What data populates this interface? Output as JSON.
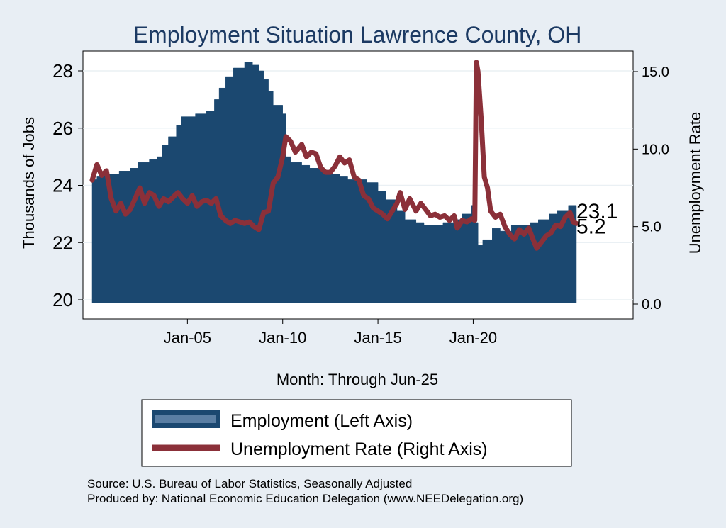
{
  "chart_data": {
    "type": "area+line",
    "title": "Employment Situation Lawrence  County, OH",
    "xlabel": "Month: Through Jun-25",
    "ylabel_left": "Thousands of Jobs",
    "ylabel_right": "Unemployment Rate",
    "x_range": [
      "2000-01",
      "2025-06"
    ],
    "x_ticks": [
      {
        "date": "2005-01",
        "label": "Jan-05"
      },
      {
        "date": "2010-01",
        "label": "Jan-10"
      },
      {
        "date": "2015-01",
        "label": "Jan-15"
      },
      {
        "date": "2020-01",
        "label": "Jan-20"
      }
    ],
    "ylim_left": [
      19.9,
      28.7
    ],
    "yticks_left": [
      20,
      22,
      24,
      26,
      28
    ],
    "ylim_right": [
      -0.3,
      16.3
    ],
    "yticks_right": [
      {
        "v": 0,
        "label": "0.0"
      },
      {
        "v": 5,
        "label": "5.0"
      },
      {
        "v": 10,
        "label": "10.0"
      },
      {
        "v": 15,
        "label": "15.0"
      }
    ],
    "grid": true,
    "legend_position": "bottom",
    "series": [
      {
        "name": "Employment (Left Axis)",
        "axis": "left",
        "color": "#1b4870",
        "points": [
          [
            "2000-01",
            24.2
          ],
          [
            "2000-04",
            24.3
          ],
          [
            "2000-07",
            24.4
          ],
          [
            "2001-01",
            24.4
          ],
          [
            "2001-06",
            24.5
          ],
          [
            "2002-01",
            24.6
          ],
          [
            "2002-06",
            24.8
          ],
          [
            "2003-01",
            24.9
          ],
          [
            "2003-06",
            25.0
          ],
          [
            "2003-09",
            25.4
          ],
          [
            "2004-01",
            25.7
          ],
          [
            "2004-06",
            26.1
          ],
          [
            "2004-09",
            26.4
          ],
          [
            "2005-01",
            26.4
          ],
          [
            "2005-06",
            26.5
          ],
          [
            "2006-01",
            26.6
          ],
          [
            "2006-06",
            27.0
          ],
          [
            "2006-09",
            27.4
          ],
          [
            "2007-01",
            27.8
          ],
          [
            "2007-06",
            28.1
          ],
          [
            "2008-01",
            28.3
          ],
          [
            "2008-06",
            28.2
          ],
          [
            "2008-10",
            28.0
          ],
          [
            "2009-01",
            27.7
          ],
          [
            "2009-04",
            27.3
          ],
          [
            "2009-07",
            26.8
          ],
          [
            "2010-01",
            26.5
          ],
          [
            "2010-03",
            25.0
          ],
          [
            "2010-06",
            24.8
          ],
          [
            "2011-01",
            24.7
          ],
          [
            "2011-06",
            24.6
          ],
          [
            "2012-01",
            24.5
          ],
          [
            "2012-06",
            24.4
          ],
          [
            "2013-01",
            24.3
          ],
          [
            "2013-06",
            24.2
          ],
          [
            "2014-01",
            24.2
          ],
          [
            "2014-06",
            24.1
          ],
          [
            "2015-01",
            23.8
          ],
          [
            "2015-06",
            23.5
          ],
          [
            "2016-01",
            23.1
          ],
          [
            "2016-06",
            22.8
          ],
          [
            "2017-01",
            22.7
          ],
          [
            "2017-06",
            22.6
          ],
          [
            "2018-01",
            22.6
          ],
          [
            "2018-06",
            22.7
          ],
          [
            "2019-01",
            22.8
          ],
          [
            "2019-06",
            23.0
          ],
          [
            "2019-12",
            23.3
          ],
          [
            "2020-02",
            22.7
          ],
          [
            "2020-04",
            21.9
          ],
          [
            "2020-07",
            22.1
          ],
          [
            "2021-01",
            22.5
          ],
          [
            "2021-06",
            22.4
          ],
          [
            "2022-01",
            22.6
          ],
          [
            "2022-06",
            22.6
          ],
          [
            "2023-01",
            22.7
          ],
          [
            "2023-06",
            22.8
          ],
          [
            "2024-01",
            23.0
          ],
          [
            "2024-06",
            23.1
          ],
          [
            "2025-01",
            23.3
          ],
          [
            "2025-06",
            23.1
          ]
        ]
      },
      {
        "name": "Unemployment Rate (Right Axis)",
        "axis": "right",
        "color": "#8b3039",
        "points": [
          [
            "2000-01",
            8.0
          ],
          [
            "2000-04",
            9.0
          ],
          [
            "2000-07",
            8.3
          ],
          [
            "2000-10",
            8.6
          ],
          [
            "2001-01",
            6.8
          ],
          [
            "2001-04",
            6.0
          ],
          [
            "2001-07",
            6.5
          ],
          [
            "2001-10",
            5.8
          ],
          [
            "2002-01",
            6.1
          ],
          [
            "2002-04",
            6.8
          ],
          [
            "2002-07",
            7.5
          ],
          [
            "2002-10",
            6.5
          ],
          [
            "2003-01",
            7.2
          ],
          [
            "2003-04",
            7.0
          ],
          [
            "2003-07",
            6.3
          ],
          [
            "2003-10",
            6.8
          ],
          [
            "2004-01",
            6.6
          ],
          [
            "2004-04",
            6.9
          ],
          [
            "2004-07",
            7.2
          ],
          [
            "2004-10",
            6.8
          ],
          [
            "2005-01",
            6.5
          ],
          [
            "2005-04",
            7.0
          ],
          [
            "2005-07",
            6.3
          ],
          [
            "2005-10",
            6.6
          ],
          [
            "2006-01",
            6.7
          ],
          [
            "2006-04",
            6.5
          ],
          [
            "2006-07",
            6.8
          ],
          [
            "2006-10",
            5.7
          ],
          [
            "2007-01",
            5.4
          ],
          [
            "2007-04",
            5.2
          ],
          [
            "2007-07",
            5.4
          ],
          [
            "2007-10",
            5.3
          ],
          [
            "2008-01",
            5.2
          ],
          [
            "2008-04",
            5.3
          ],
          [
            "2008-07",
            5.0
          ],
          [
            "2008-10",
            4.8
          ],
          [
            "2009-01",
            5.9
          ],
          [
            "2009-04",
            6.0
          ],
          [
            "2009-07",
            7.8
          ],
          [
            "2009-10",
            8.2
          ],
          [
            "2010-01",
            9.5
          ],
          [
            "2010-03",
            10.8
          ],
          [
            "2010-06",
            10.5
          ],
          [
            "2010-09",
            9.8
          ],
          [
            "2011-01",
            10.3
          ],
          [
            "2011-04",
            9.5
          ],
          [
            "2011-07",
            9.8
          ],
          [
            "2011-10",
            9.7
          ],
          [
            "2012-01",
            8.8
          ],
          [
            "2012-04",
            8.5
          ],
          [
            "2012-07",
            8.5
          ],
          [
            "2012-10",
            8.9
          ],
          [
            "2013-01",
            9.5
          ],
          [
            "2013-04",
            9.1
          ],
          [
            "2013-07",
            9.3
          ],
          [
            "2013-10",
            8.2
          ],
          [
            "2014-01",
            8.0
          ],
          [
            "2014-04",
            7.0
          ],
          [
            "2014-07",
            6.8
          ],
          [
            "2014-10",
            6.2
          ],
          [
            "2015-01",
            6.0
          ],
          [
            "2015-04",
            5.8
          ],
          [
            "2015-07",
            5.5
          ],
          [
            "2015-10",
            6.0
          ],
          [
            "2016-01",
            6.5
          ],
          [
            "2016-03",
            7.2
          ],
          [
            "2016-06",
            6.1
          ],
          [
            "2016-09",
            6.8
          ],
          [
            "2017-01",
            6.0
          ],
          [
            "2017-04",
            6.5
          ],
          [
            "2017-07",
            6.1
          ],
          [
            "2017-10",
            5.7
          ],
          [
            "2018-01",
            5.8
          ],
          [
            "2018-04",
            5.6
          ],
          [
            "2018-07",
            5.7
          ],
          [
            "2018-10",
            5.4
          ],
          [
            "2019-01",
            5.7
          ],
          [
            "2019-03",
            4.9
          ],
          [
            "2019-06",
            5.4
          ],
          [
            "2019-09",
            5.3
          ],
          [
            "2019-12",
            5.5
          ],
          [
            "2020-02",
            5.4
          ],
          [
            "2020-03",
            15.6
          ],
          [
            "2020-04",
            15.0
          ],
          [
            "2020-06",
            12.0
          ],
          [
            "2020-08",
            8.2
          ],
          [
            "2020-10",
            7.5
          ],
          [
            "2020-12",
            6.0
          ],
          [
            "2021-03",
            5.6
          ],
          [
            "2021-06",
            5.8
          ],
          [
            "2021-09",
            5.0
          ],
          [
            "2021-12",
            4.5
          ],
          [
            "2022-03",
            4.2
          ],
          [
            "2022-06",
            4.8
          ],
          [
            "2022-09",
            4.5
          ],
          [
            "2022-12",
            4.9
          ],
          [
            "2023-03",
            4.1
          ],
          [
            "2023-05",
            3.6
          ],
          [
            "2023-08",
            4.0
          ],
          [
            "2023-11",
            4.4
          ],
          [
            "2024-02",
            4.6
          ],
          [
            "2024-05",
            5.1
          ],
          [
            "2024-08",
            5.0
          ],
          [
            "2024-11",
            5.6
          ],
          [
            "2025-02",
            5.9
          ],
          [
            "2025-04",
            5.3
          ],
          [
            "2025-06",
            5.2
          ]
        ]
      }
    ],
    "end_labels": [
      {
        "series": 0,
        "label": "23.1"
      },
      {
        "series": 1,
        "label": "5.2"
      }
    ],
    "legend": [
      {
        "label": "Employment (Left Axis)"
      },
      {
        "label": "Unemployment Rate (Right Axis)"
      }
    ]
  },
  "footer": {
    "source": "Source: U.S. Bureau of Labor Statistics, Seasonally Adjusted",
    "produced": "Produced by: National Economic Education Delegation (www.NEEDelegation.org)"
  },
  "colors": {
    "background": "#e8eef4",
    "plot_background": "#ffffff",
    "title": "#1c3a63",
    "grid": "#eaf0f4",
    "employment_fill": "#1b4870",
    "unemployment_line": "#8b3039",
    "legend_swatch_inner": "#5a7ea3"
  }
}
